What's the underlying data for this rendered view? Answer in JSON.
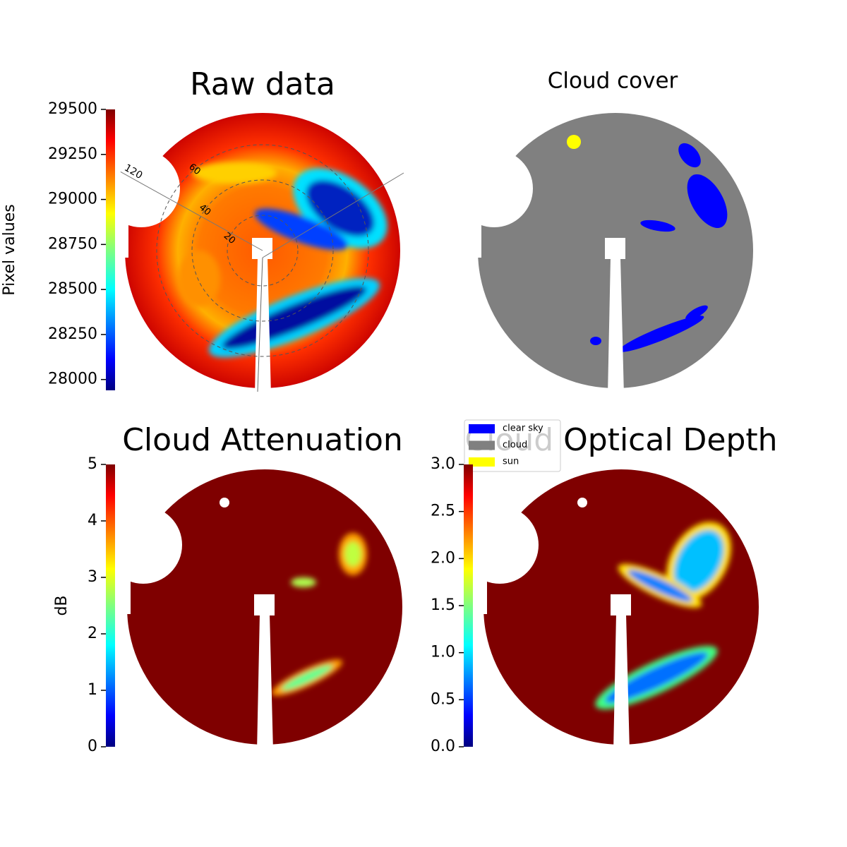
{
  "chart_data": [
    {
      "type": "image",
      "title": "Raw data",
      "colorbar": {
        "label": "Pixel values",
        "lim": [
          27940,
          29500
        ],
        "ticks": [
          28000,
          28250,
          28500,
          28750,
          29000,
          29250,
          29500
        ]
      },
      "rlim": [
        0,
        80
      ],
      "rticks": [
        20,
        40,
        60
      ],
      "thetaticks": [
        120
      ]
    },
    {
      "type": "image",
      "title": "Cloud cover",
      "series": [
        {
          "name": "clear sky",
          "color": "#0000ff"
        },
        {
          "name": "cloud",
          "color": "#808080"
        },
        {
          "name": "sun",
          "color": "#ffff00"
        }
      ]
    },
    {
      "type": "image",
      "title": "Cloud Attenuation",
      "colorbar": {
        "label": "dB",
        "lim": [
          0,
          5
        ],
        "ticks": [
          0,
          1,
          2,
          3,
          4,
          5
        ]
      }
    },
    {
      "type": "image",
      "title": "Cloud Optical Depth",
      "colorbar": {
        "lim": [
          0,
          3
        ],
        "ticks": [
          {
            "value": 0,
            "label": "0.0"
          },
          0.5,
          {
            "value": 1,
            "label": "1.0"
          },
          1.5,
          {
            "value": 2,
            "label": "2.0"
          },
          2.5,
          {
            "value": 3,
            "label": "3.0"
          }
        ]
      }
    }
  ]
}
